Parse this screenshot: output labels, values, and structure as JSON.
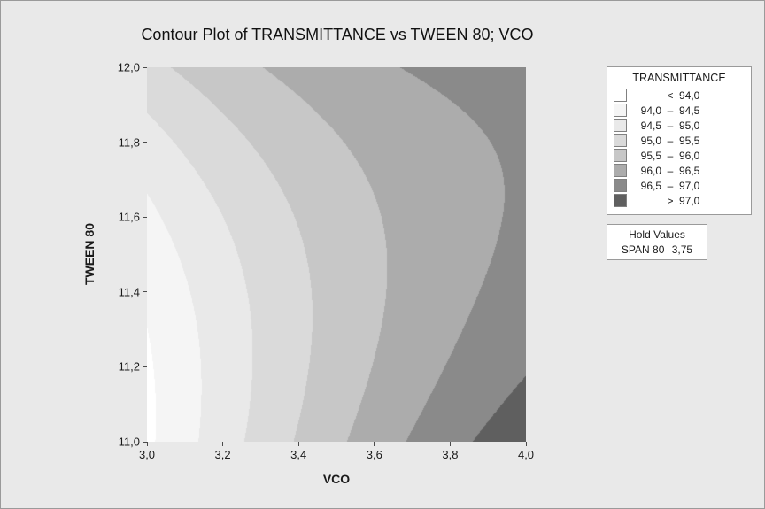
{
  "window": {
    "background": "#e9e9e9"
  },
  "chart_data": {
    "type": "contour",
    "title": "Contour Plot of TRANSMITTANCE vs TWEEN 80; VCO",
    "xlabel": "VCO",
    "ylabel": "TWEEN 80",
    "xlim": [
      3.0,
      4.0
    ],
    "ylim": [
      11.0,
      12.0
    ],
    "grid_lines": false,
    "legend_position": "top-right",
    "x_ticks": [
      {
        "v": 3.0,
        "label": "3,0"
      },
      {
        "v": 3.2,
        "label": "3,2"
      },
      {
        "v": 3.4,
        "label": "3,4"
      },
      {
        "v": 3.6,
        "label": "3,6"
      },
      {
        "v": 3.8,
        "label": "3,8"
      },
      {
        "v": 4.0,
        "label": "4,0"
      }
    ],
    "y_ticks": [
      {
        "v": 11.0,
        "label": "11,0"
      },
      {
        "v": 11.2,
        "label": "11,2"
      },
      {
        "v": 11.4,
        "label": "11,4"
      },
      {
        "v": 11.6,
        "label": "11,6"
      },
      {
        "v": 11.8,
        "label": "11,8"
      },
      {
        "v": 12.0,
        "label": "12,0"
      }
    ],
    "legend_title": "TRANSMITTANCE",
    "legend_rows": [
      {
        "left": "",
        "sep": "<",
        "right": "94,0"
      },
      {
        "left": "94,0",
        "sep": "–",
        "right": "94,5"
      },
      {
        "left": "94,5",
        "sep": "–",
        "right": "95,0"
      },
      {
        "left": "95,0",
        "sep": "–",
        "right": "95,5"
      },
      {
        "left": "95,5",
        "sep": "–",
        "right": "96,0"
      },
      {
        "left": "96,0",
        "sep": "–",
        "right": "96,5"
      },
      {
        "left": "96,5",
        "sep": "–",
        "right": "97,0"
      },
      {
        "left": "",
        "sep": ">",
        "right": "97,0"
      }
    ],
    "levels": [
      94.0,
      94.5,
      95.0,
      95.5,
      96.0,
      96.5,
      97.0
    ],
    "band_colors": [
      "#ffffff",
      "#f5f5f5",
      "#e9e9e9",
      "#dadada",
      "#c7c7c7",
      "#acacac",
      "#8a8a8a",
      "#5f5f5f"
    ],
    "hold_values": {
      "title": "Hold Values",
      "name": "SPAN 80",
      "value": "3,75"
    },
    "model": {
      "type": "quadratic-response-surface",
      "center": {
        "x": 3.5,
        "y": 11.5
      },
      "coeffs": {
        "c0": 95.7,
        "cu": 2.4,
        "cv": 0.4,
        "cuu": -1.124,
        "cvv": 1.625,
        "cuv": -2.1
      }
    },
    "grid": {
      "x": [
        3.0,
        3.25,
        3.5,
        3.75,
        4.0
      ],
      "y": [
        11.0,
        11.25,
        11.5,
        11.75,
        12.0
      ],
      "z": [
        [
          93.9,
          94.97,
          95.91,
          96.7,
          97.35
        ],
        [
          93.96,
          94.9,
          95.7,
          96.36,
          96.88
        ],
        [
          94.22,
          95.03,
          95.7,
          96.23,
          96.62
        ],
        [
          94.68,
          95.36,
          95.9,
          96.36,
          96.56
        ],
        [
          95.35,
          95.9,
          96.31,
          96.57,
          96.7
        ]
      ]
    }
  }
}
